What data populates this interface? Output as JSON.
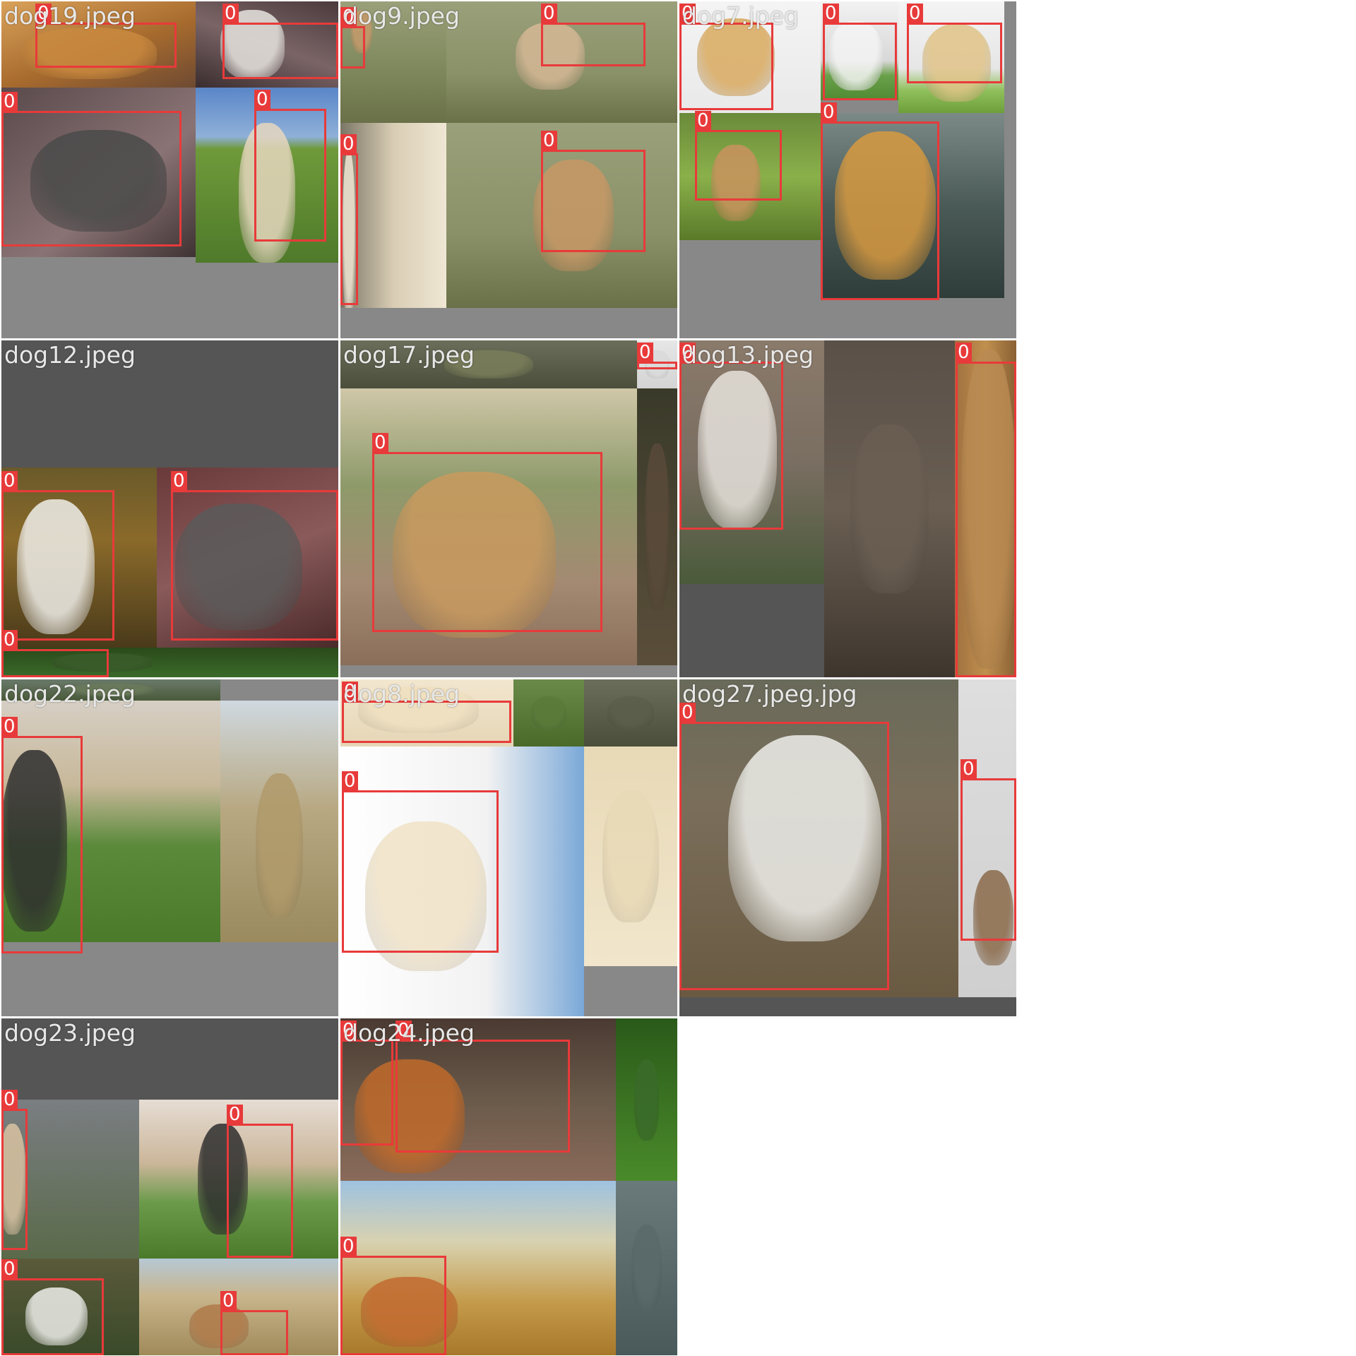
{
  "label_color": "#e83a3a",
  "tiles": [
    {
      "filename": "dog19.jpeg",
      "dark": false,
      "parts": [
        {
          "bg": "linear-gradient(160deg,#d9a25a,#a86b2e 55%,#6e4a32)",
          "dog": "#c9893f"
        },
        {
          "bg": "linear-gradient(200deg,#4b3a3c,#7a6466 50%,#3a2d2f)",
          "dog": "#e7e4df"
        },
        {
          "bg": "linear-gradient(140deg,#5a4a4c,#8a7374 60%,#3f3334)",
          "dog": "#4a4a4a"
        },
        {
          "bg": "linear-gradient(180deg,#5a86c8 0%,#8fb0d8 28%,#6f9a3a 35%,#4f7a2a 100%)",
          "dog": "#e6d7bf"
        }
      ],
      "boxes": [
        "0",
        "0",
        "0",
        "0"
      ]
    },
    {
      "filename": "dog9.jpeg",
      "dark": false,
      "parts": [
        {
          "bg": "linear-gradient(180deg,#9aa07a,#7d865a 60%,#6a7048)",
          "dog": "#c59a6a"
        },
        {
          "bg": "linear-gradient(180deg,#9aa07a,#8a9168 60%,#6a7048)",
          "dog": "#d6b896"
        },
        {
          "bg": "linear-gradient(90deg,#7a7666,#d9cdb4 50%,#efe7d4)",
          "dog": "#f0e6d4"
        },
        {
          "bg": "linear-gradient(180deg,#9aa07a,#8a9168 60%,#6a7048)",
          "dog": "#c89866"
        }
      ],
      "boxes": [
        "0",
        "0",
        "0",
        "0"
      ]
    },
    {
      "filename": "dog7.jpeg",
      "dark": false,
      "parts": [
        {
          "bg": "linear-gradient(180deg,#f4f4f4,#e9e9e9)",
          "dog": "#d9a95e"
        },
        {
          "bg": "linear-gradient(180deg,#f2f2f2 0%,#d8d8d8 60%,#6aa04a 75%,#4f8a32 100%)",
          "dog": "#f4f4f4"
        },
        {
          "bg": "linear-gradient(180deg,#f4f4f4 0%,#e6e6e6 60%,#8fbf5a 80%,#6f9f3a 100%)",
          "dog": "#e0c387"
        },
        {
          "bg": "linear-gradient(180deg,#6a8a3a,#8ab04a 50%,#5a7a2a)",
          "dog": "#c9925e"
        },
        {
          "bg": "linear-gradient(180deg,#7b8a86,#4a5a56 50%,#2f3d3a)",
          "dog": "#d89a40"
        }
      ],
      "boxes": [
        "0",
        "0",
        "0",
        "0",
        "0"
      ]
    },
    {
      "filename": "dog12.jpeg",
      "dark": true,
      "parts": [
        {
          "bg": "linear-gradient(180deg,#6a5a2a,#8a6a2a 40%,#4a3a1a)",
          "dog": "#efeeea"
        },
        {
          "bg": "linear-gradient(160deg,#6a3a3a,#8a5a5a 50%,#4a2a2a)",
          "dog": "#5a5a5a"
        },
        {
          "bg": "linear-gradient(180deg,#2a4a1a,#3a6a2a)",
          "dog": "#3a5a2a"
        }
      ],
      "boxes": [
        "0",
        "0",
        "0"
      ]
    },
    {
      "filename": "dog17.jpeg",
      "dark": false,
      "parts": [
        {
          "bg": "linear-gradient(180deg,#6a6e5a,#4a4e3a)",
          "dog": "#7a7e5a"
        },
        {
          "bg": "linear-gradient(180deg,#cfc7a8 0%,#8e9a6a 35%,#a48a72 70%,#8a6e5a 100%)",
          "dog": "#c99a5e"
        },
        {
          "bg": "linear-gradient(180deg,#e6e6e6,#d4d4d4)",
          "dog": "#dadada"
        },
        {
          "bg": "linear-gradient(180deg,#3a3a2a,#5a4e3a)",
          "dog": "#5a4a3a"
        }
      ],
      "boxes": [
        "0",
        "0"
      ]
    },
    {
      "filename": "dog13.jpeg",
      "dark": true,
      "parts": [
        {
          "bg": "linear-gradient(180deg,#8a7a6a,#7a6e62 50%,#4a5a3a)",
          "dog": "#e6e2dc"
        },
        {
          "bg": "linear-gradient(180deg,#5a5048,#6a5e52 50%,#3e362e)",
          "dog": "#6a5e52"
        },
        {
          "bg": "linear-gradient(90deg,#a07040,#c0904e 50%,#8a6034)",
          "dog": "#b98a52"
        }
      ],
      "boxes": [
        "0",
        "0"
      ]
    },
    {
      "filename": "dog22.jpeg",
      "dark": false,
      "parts": [
        {
          "bg": "linear-gradient(180deg,#6a7a6a,#4a5a3a)",
          "dog": "#6a7a5a"
        },
        {
          "bg": "linear-gradient(180deg,#d6cfc4 0%,#c8b89a 35%,#5a8a3a 60%,#4a7a2a 100%)",
          "dog": "#2e2e2e"
        },
        {
          "bg": "linear-gradient(180deg,#cfd9e0 0%,#b8a882 45%,#9a8a5e 100%)",
          "dog": "#b09a6a"
        }
      ],
      "boxes": [
        "0"
      ]
    },
    {
      "filename": "dog8.jpeg",
      "dark": false,
      "parts": [
        {
          "bg": "linear-gradient(180deg,#f2e6cf,#e6d6b6)",
          "dog": "#efe0c0"
        },
        {
          "bg": "linear-gradient(180deg,#6a8a4a,#4a6a2a)",
          "dog": "#5a7a3a"
        },
        {
          "bg": "linear-gradient(180deg,#6a6e5a,#4a4e3a)",
          "dog": "#5a5e4a"
        },
        {
          "bg": "linear-gradient(90deg,#ffffff,#f2f2f2 60%,#7aa8d8)",
          "dog": "#f0e2c6"
        },
        {
          "bg": "linear-gradient(180deg,#e8d9b6,#f1e6cc)",
          "dog": "#e8d9b6"
        }
      ],
      "boxes": [
        "0",
        "0"
      ]
    },
    {
      "filename": "dog27.jpeg.jpg",
      "dark": true,
      "parts": [
        {
          "bg": "linear-gradient(180deg,#6a6a5a 0%,#7a6e5a 40%,#6a5a42 100%)",
          "dog": "#eeeeea"
        },
        {
          "bg": "linear-gradient(180deg,#dedede,#cfcfcf)",
          "dog": "#8a6a4a"
        }
      ],
      "boxes": [
        "0",
        "0"
      ]
    },
    {
      "filename": "dog23.jpeg",
      "dark": true,
      "parts": [
        {
          "bg": "linear-gradient(180deg,#7a7e82,#5a6a4a)",
          "dog": "#d9c2a2"
        },
        {
          "bg": "linear-gradient(180deg,#e6ddd4 0%,#cbb69a 40%,#6a9a4a 65%,#4a7a2a 100%)",
          "dog": "#2e2e2e"
        },
        {
          "bg": "linear-gradient(180deg,#5a5a3a,#3a4a2a)",
          "dog": "#eeeeea"
        },
        {
          "bg": "linear-gradient(180deg,#b6c8d4 0%,#c8b48a 40%,#a08a5a 100%)",
          "dog": "#b07a4a"
        }
      ],
      "boxes": [
        "0",
        "0",
        "0",
        "0"
      ]
    },
    {
      "filename": "dog24.jpeg",
      "dark": false,
      "parts": [
        {
          "bg": "linear-gradient(180deg,#4a3a32,#6a5a4a 50%,#8a6a5a)",
          "dog": "#c06a2a"
        },
        {
          "bg": "linear-gradient(180deg,#2a5a1a,#4a8a2a)",
          "dog": "#3a6a2a"
        },
        {
          "bg": "linear-gradient(180deg,#9ec2e0 0%,#d8d2b0 35%,#c49a4a 70%,#a8782a 100%)",
          "dog": "#c26a30"
        },
        {
          "bg": "linear-gradient(180deg,#6a7a7a,#4a5a5a)",
          "dog": "#5a6a6a"
        }
      ],
      "boxes": [
        "0",
        "0",
        "0"
      ]
    }
  ]
}
